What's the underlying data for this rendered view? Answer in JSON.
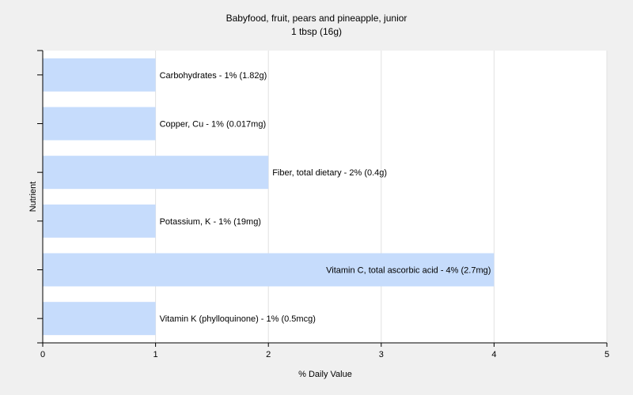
{
  "chart_data": {
    "type": "bar",
    "orientation": "horizontal",
    "title": "Babyfood, fruit, pears and pineapple, junior",
    "subtitle": "1 tbsp (16g)",
    "xlabel": "% Daily Value",
    "ylabel": "Nutrient",
    "xlim": [
      0,
      5
    ],
    "xticks": [
      "0",
      "1",
      "2",
      "3",
      "4",
      "5"
    ],
    "grid": true,
    "bar_color": "#c6dcfc",
    "categories": [
      "Carbohydrates",
      "Copper, Cu",
      "Fiber, total dietary",
      "Potassium, K",
      "Vitamin C, total ascorbic acid",
      "Vitamin K (phylloquinone)"
    ],
    "values": [
      1,
      1,
      2,
      1,
      4,
      1
    ],
    "labels": [
      "Carbohydrates - 1% (1.82g)",
      "Copper, Cu - 1% (0.017mg)",
      "Fiber, total dietary - 2% (0.4g)",
      "Potassium, K - 1% (19mg)",
      "Vitamin C, total ascorbic acid - 4% (2.7mg)",
      "Vitamin K (phylloquinone) - 1% (0.5mcg)"
    ]
  }
}
